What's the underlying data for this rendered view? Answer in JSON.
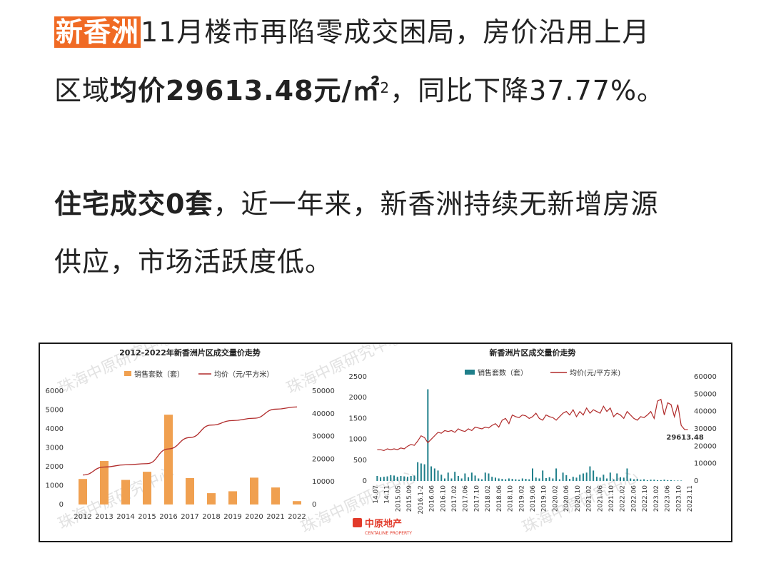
{
  "article": {
    "p1_highlight": "新香洲",
    "p1_rest": "11月楼市再陷零成交困局，房价沿用上月",
    "p2_lead": "区域",
    "p2_bold": "均价29613.48元/㎡",
    "p2_sup": "2",
    "p2_rest": "，同比下降37.77%。",
    "p3_bold": "住宅成交0套",
    "p3_rest": "，近一年来，新香洲持续无新增房源",
    "p4": "供应，市场活跃度低。"
  },
  "watermark": {
    "text": "珠海中原研究中心",
    "logo": "中原地产",
    "logo_en": "CENTALINE PROPERTY"
  },
  "colors": {
    "bar_left": "#f0a050",
    "line": "#b02a2a",
    "bar_right": "#1f7f8a",
    "highlight": "#f06a24"
  },
  "chart_data": [
    {
      "type": "bar",
      "title": "2012-2022年新香洲片区成交量价走势",
      "legend": [
        "销售套数（套）",
        "均价（元/平方米）"
      ],
      "categories": [
        "2012",
        "2013",
        "2014",
        "2015",
        "2016",
        "2017",
        "2018",
        "2019",
        "2020",
        "2021",
        "2022"
      ],
      "series": [
        {
          "name": "销售套数（套）",
          "axis": "left",
          "kind": "bar",
          "values": [
            1350,
            2300,
            1300,
            1730,
            4750,
            1400,
            600,
            700,
            1420,
            900,
            180
          ]
        },
        {
          "name": "均价（元/平方米）",
          "axis": "right",
          "kind": "line",
          "values": [
            13000,
            16500,
            17500,
            18000,
            24500,
            29500,
            35000,
            37000,
            38000,
            42000,
            43000
          ]
        }
      ],
      "yleft": {
        "ylim": [
          0,
          6000
        ],
        "ticks": [
          "0",
          "1000",
          "2000",
          "3000",
          "4000",
          "5000",
          "6000"
        ]
      },
      "yright": {
        "ylim": [
          0,
          50000
        ],
        "ticks": [
          "0",
          "10000",
          "20000",
          "30000",
          "40000",
          "50000"
        ]
      }
    },
    {
      "type": "bar",
      "title": "新香洲片区成交量价走势",
      "legend": [
        "销售套数（套）",
        "均价(元/平方米)"
      ],
      "x_ticks": [
        "14.07",
        "14.11",
        "2015.05",
        "2015.09",
        "2016.1-2",
        "2016.06",
        "2016.10",
        "2017.02",
        "2017.06",
        "2017.10",
        "2018.02",
        "2018.06",
        "2018.10",
        "2019.02",
        "2019.06",
        "2019.10",
        "2020.02",
        "2020.06",
        "2020.10",
        "2021.02",
        "2021.06",
        "2021.10",
        "2022.02",
        "2022.06",
        "2022.10",
        "2023.02",
        "2023.06",
        "2023.10",
        "2023.11"
      ],
      "annotation": "29613.48",
      "volume": [
        120,
        90,
        100,
        110,
        140,
        130,
        100,
        120,
        110,
        100,
        120,
        130,
        450,
        420,
        400,
        2200,
        350,
        300,
        250,
        150,
        60,
        200,
        60,
        220,
        120,
        60,
        180,
        90,
        200,
        130,
        60,
        40,
        200,
        180,
        100,
        80,
        60,
        50,
        40,
        60,
        50,
        40,
        30,
        60,
        50,
        40,
        300,
        80,
        60,
        250,
        70,
        90,
        60,
        300,
        40,
        200,
        140,
        50,
        100,
        80,
        150,
        180,
        200,
        350,
        250,
        100,
        80,
        150,
        60,
        200,
        40,
        180,
        90,
        80,
        300,
        60,
        40,
        50,
        30,
        40,
        20,
        30,
        30,
        20,
        20,
        30,
        20,
        20,
        10,
        10,
        10,
        0,
        0
      ],
      "price": [
        18000,
        18000,
        17500,
        18500,
        18000,
        18500,
        18000,
        19000,
        18500,
        20000,
        21000,
        20500,
        23000,
        26000,
        25000,
        22000,
        24000,
        26000,
        28000,
        27500,
        29000,
        28500,
        29000,
        28000,
        30000,
        29000,
        28500,
        30000,
        29000,
        31000,
        30500,
        30000,
        31000,
        30500,
        32000,
        33000,
        31000,
        35000,
        36000,
        33000,
        38000,
        37000,
        36500,
        38000,
        37500,
        36000,
        37000,
        39000,
        36000,
        35000,
        38000,
        37000,
        36500,
        35000,
        37000,
        39000,
        40000,
        38000,
        41000,
        37000,
        40000,
        38000,
        42000,
        39000,
        41000,
        40000,
        39000,
        43000,
        40000,
        42000,
        37000,
        39000,
        38000,
        36000,
        40000,
        38000,
        36000,
        35000,
        37000,
        36500,
        38000,
        40000,
        36000,
        46000,
        47000,
        38000,
        45000,
        44000,
        37000,
        44000,
        32000,
        29613.48,
        29613.48
      ],
      "yleft": {
        "ylim": [
          0,
          2500
        ],
        "ticks": [
          "0",
          "500",
          "1000",
          "1500",
          "2000",
          "2500"
        ]
      },
      "yright": {
        "ylim": [
          0,
          60000
        ],
        "ticks": [
          "0",
          "10000",
          "20000",
          "30000",
          "40000",
          "50000",
          "60000"
        ]
      }
    }
  ]
}
